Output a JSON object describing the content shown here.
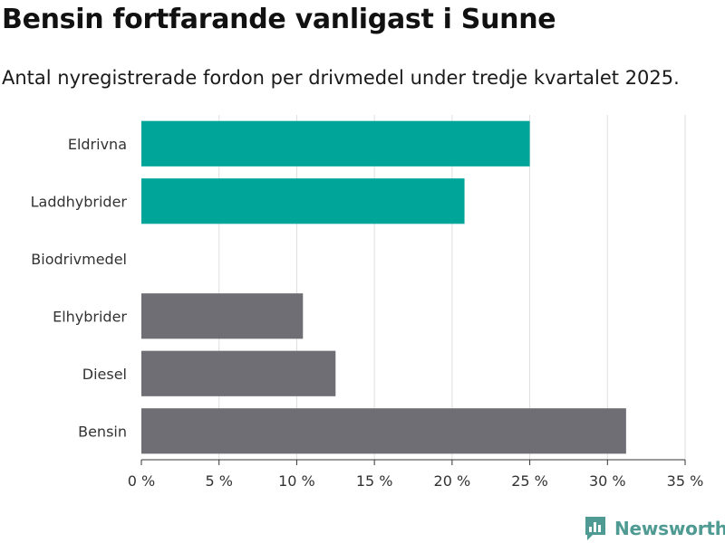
{
  "header": {
    "title": "Bensin fortfarande vanligast i Sunne",
    "subtitle": "Antal nyregistrerade fordon per drivmedel under tredje kvartalet 2025."
  },
  "chart_data": {
    "type": "bar",
    "orientation": "horizontal",
    "title": "Bensin fortfarande vanligast i Sunne",
    "subtitle": "Antal nyregistrerade fordon per drivmedel under tredje kvartalet 2025.",
    "categories": [
      "Eldrivna",
      "Laddhybrider",
      "Biodrivmedel",
      "Elhybrider",
      "Diesel",
      "Bensin"
    ],
    "values": [
      25.0,
      20.8,
      0,
      10.4,
      12.5,
      31.2
    ],
    "unit": "%",
    "colors": [
      "#00a59a",
      "#00a59a",
      "#00a59a",
      "#6e6e74",
      "#6e6e74",
      "#6e6e74"
    ],
    "xlim": [
      0,
      35
    ],
    "ticks": [
      0,
      5,
      10,
      15,
      20,
      25,
      30,
      35
    ],
    "tick_labels": [
      "0 %",
      "5 %",
      "10 %",
      "15 %",
      "20 %",
      "25 %",
      "30 %",
      "35 %"
    ],
    "grid": true,
    "xlabel": "",
    "ylabel": ""
  },
  "logo": {
    "text": "Newsworthy",
    "color": "#4f9b93",
    "icon": "bar-chart-speech-icon"
  }
}
